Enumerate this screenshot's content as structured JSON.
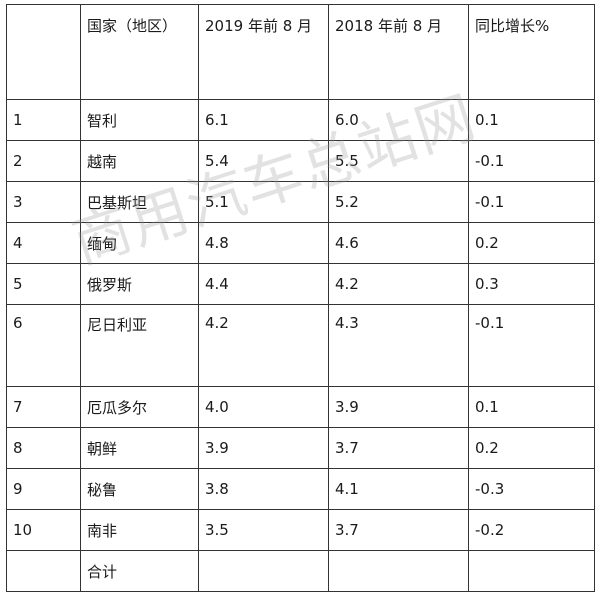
{
  "headers": [
    "",
    "国家（地区）",
    "2019 年前 8 月",
    "2018 年前 8 月",
    "同比增长%"
  ],
  "rows": [
    [
      "1",
      "智利",
      "6.1",
      "6.0",
      "0.1"
    ],
    [
      "2",
      "越南",
      "5.4",
      "5.5",
      "-0.1"
    ],
    [
      "3",
      "巴基斯坦",
      "5.1",
      "5.2",
      "-0.1"
    ],
    [
      "4",
      "缅甸",
      "4.8",
      "4.6",
      "0.2"
    ],
    [
      "5",
      "俄罗斯",
      "4.4",
      "4.2",
      "0.3"
    ],
    [
      "6",
      "尼日利亚",
      "4.2",
      "4.3",
      "-0.1"
    ],
    [
      "7",
      "厄瓜多尔",
      "4.0",
      "3.9",
      "0.1"
    ],
    [
      "8",
      "朝鲜",
      "3.9",
      "3.7",
      "0.2"
    ],
    [
      "9",
      "秘鲁",
      "3.8",
      "4.1",
      "-0.3"
    ],
    [
      "10",
      "南非",
      "3.5",
      "3.7",
      "-0.2"
    ]
  ],
  "total_row": [
    "",
    "合计",
    "",
    "",
    ""
  ],
  "watermark": "商用汽车总站网"
}
